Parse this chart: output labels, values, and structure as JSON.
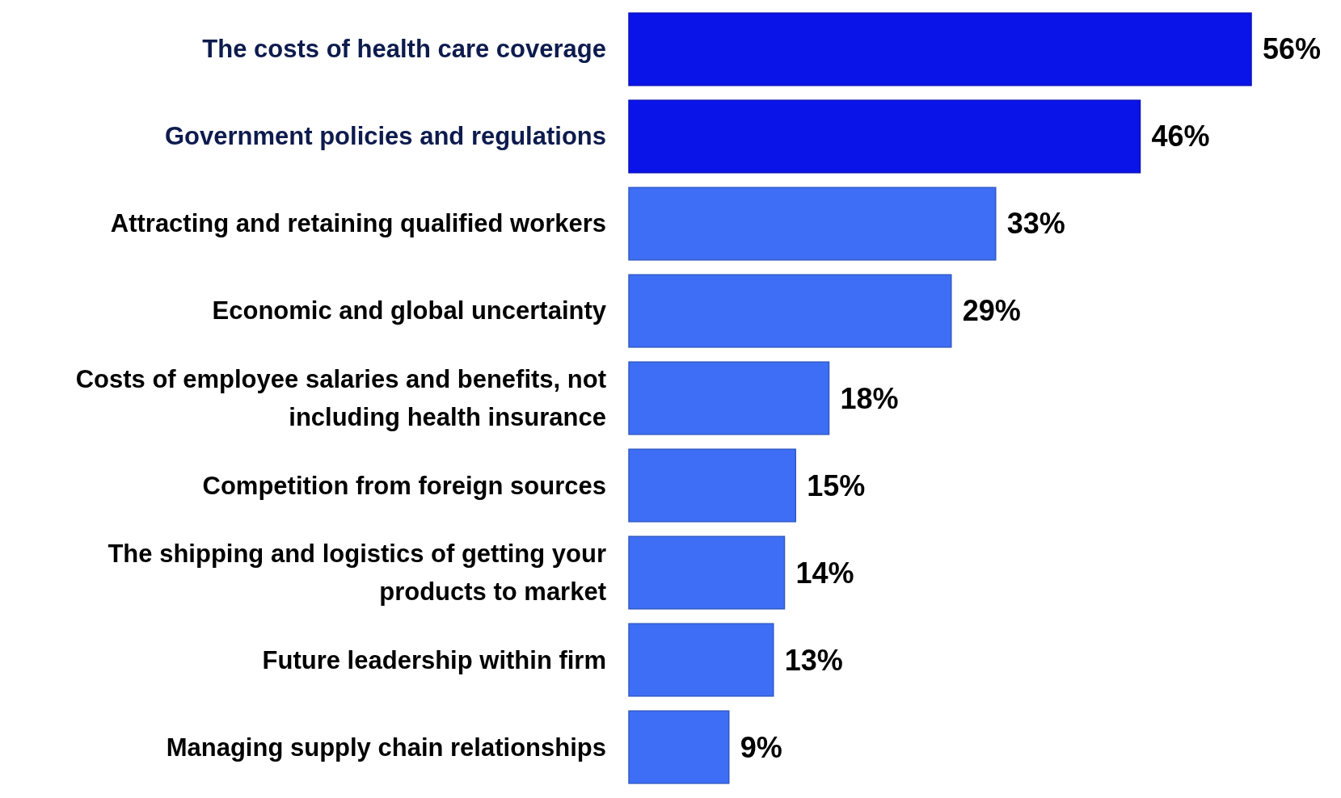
{
  "chart_data": {
    "type": "bar",
    "orientation": "horizontal",
    "categories": [
      "The costs of health care coverage",
      "Government policies and regulations",
      "Attracting and retaining qualified workers",
      "Economic and global uncertainty",
      "Costs of employee salaries and benefits, not including health insurance",
      "Competition from foreign sources",
      "The shipping and logistics of getting your products to market",
      "Future leadership within firm",
      "Managing supply chain relationships"
    ],
    "values": [
      56,
      46,
      33,
      29,
      18,
      15,
      14,
      13,
      9
    ],
    "colors": [
      "#0a14e8",
      "#0a14e8",
      "#3d6ef5",
      "#3d6ef5",
      "#3d6ef5",
      "#3d6ef5",
      "#3d6ef5",
      "#3d6ef5",
      "#3d6ef5"
    ],
    "value_labels": [
      "56%",
      "46%",
      "33%",
      "29%",
      "18%",
      "15%",
      "14%",
      "13%",
      "9%"
    ]
  }
}
